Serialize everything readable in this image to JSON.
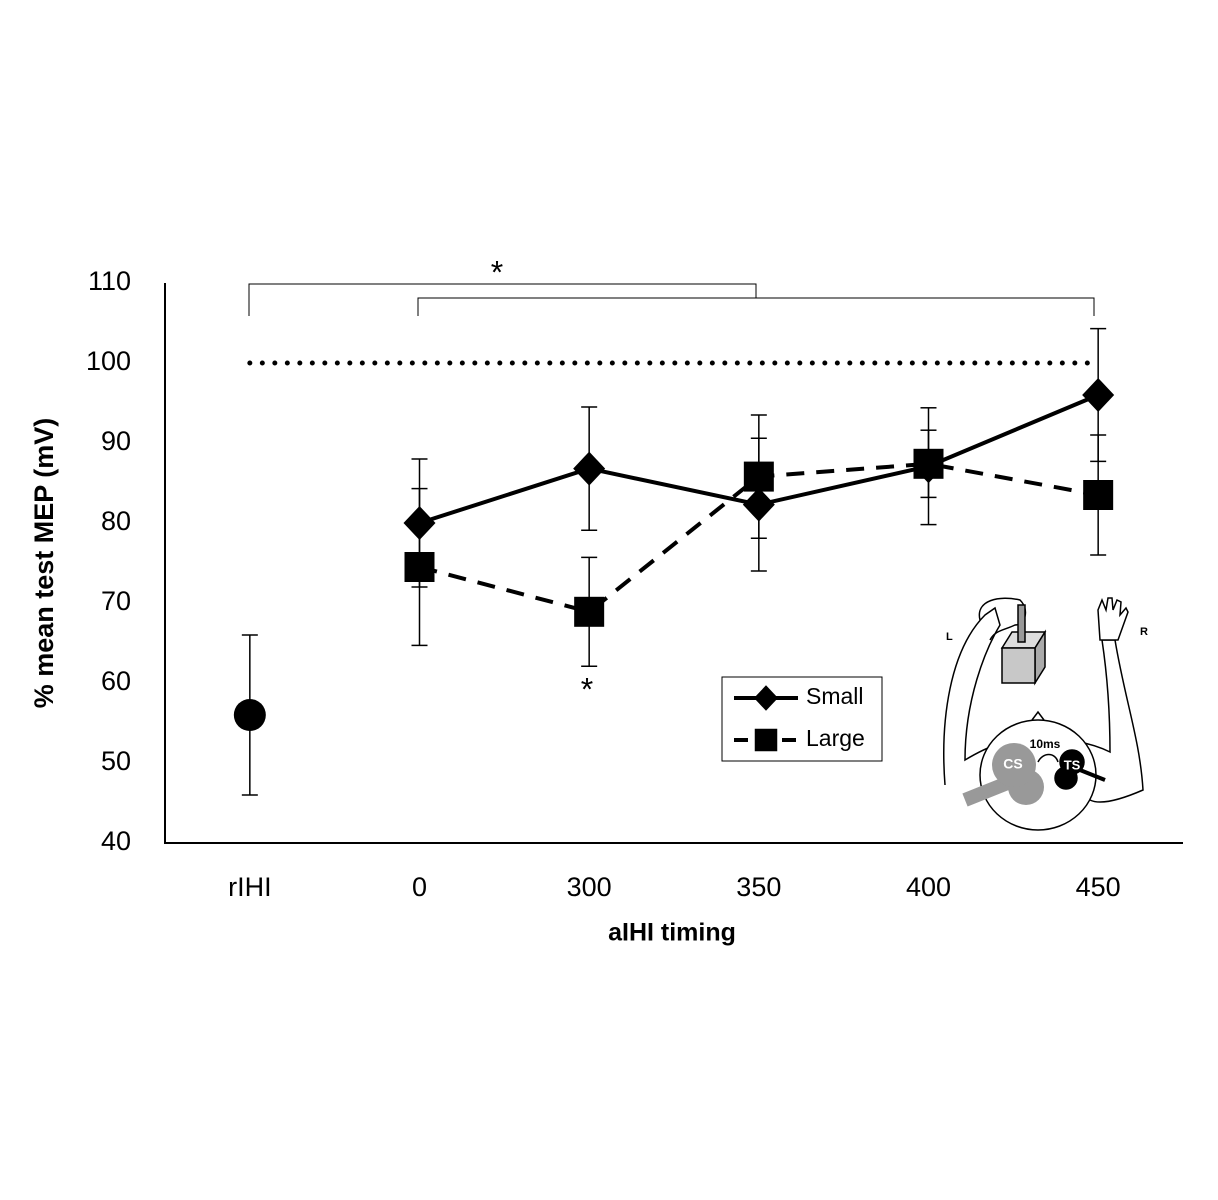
{
  "chart_data": {
    "type": "line",
    "ylabel": "% mean test MEP (mV)",
    "xlabel": "aIHI timing",
    "categories": [
      "rIHI",
      "0",
      "300",
      "350",
      "400",
      "450"
    ],
    "series": [
      {
        "name": "Small",
        "color": "#000000",
        "marker": "diamond",
        "linestyle": "solid",
        "values": [
          null,
          80,
          86.8,
          82.3,
          87.1,
          96
        ],
        "errors": [
          null,
          8,
          7.7,
          8.3,
          7.3,
          8.3
        ]
      },
      {
        "name": "Large",
        "color": "#000000",
        "marker": "square",
        "linestyle": "dashed",
        "values": [
          null,
          74.5,
          68.9,
          85.8,
          87.4,
          83.5
        ],
        "errors": [
          null,
          9.8,
          6.8,
          7.7,
          4.2,
          7.5
        ]
      },
      {
        "color": "#000000",
        "marker": "circle",
        "linestyle": "none",
        "values": [
          56,
          null,
          null,
          null,
          null,
          null
        ],
        "errors": [
          10,
          null,
          null,
          null,
          null,
          null
        ]
      }
    ],
    "reference_line": 100,
    "ylim": [
      40,
      110
    ],
    "yticks": [
      40,
      50,
      60,
      70,
      80,
      90,
      100,
      110
    ],
    "grid": false,
    "legend": "lower right",
    "annotations": [
      "*",
      "*"
    ],
    "inset_labels": [
      "L",
      "R",
      "10ms",
      "CS",
      "TS"
    ]
  }
}
